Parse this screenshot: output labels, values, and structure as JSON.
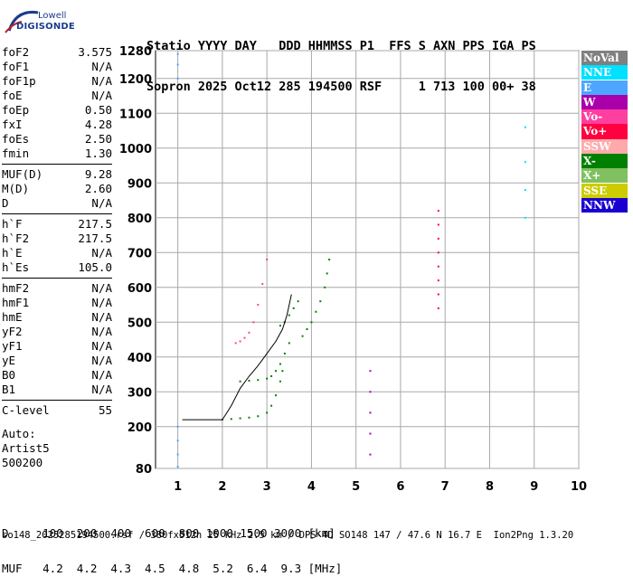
{
  "logo": {
    "line1": "Lowell",
    "line2": "DIGISONDE"
  },
  "header": {
    "labels": "Statio YYYY DAY   DDD HHMMSS P1  FFS S AXN PPS IGA PS",
    "values": "Sopron 2025 Oct12 285 194500 RSF     1 713 100 00+ 38"
  },
  "params_groups": [
    [
      [
        "foF2",
        "3.575"
      ],
      [
        "foF1",
        "N/A"
      ],
      [
        "foF1p",
        "N/A"
      ],
      [
        "foE",
        "N/A"
      ],
      [
        "foEp",
        "0.50"
      ],
      [
        "fxI",
        "4.28"
      ],
      [
        "foEs",
        "2.50"
      ],
      [
        "fmin",
        "1.30"
      ]
    ],
    [
      [
        "MUF(D)",
        "9.28"
      ],
      [
        "M(D)",
        "2.60"
      ],
      [
        "D",
        "N/A"
      ]
    ],
    [
      [
        "h`F",
        "217.5"
      ],
      [
        "h`F2",
        "217.5"
      ],
      [
        "h`E",
        "N/A"
      ],
      [
        "h`Es",
        "105.0"
      ]
    ],
    [
      [
        "hmF2",
        "N/A"
      ],
      [
        "hmF1",
        "N/A"
      ],
      [
        "hmE",
        "N/A"
      ],
      [
        "yF2",
        "N/A"
      ],
      [
        "yF1",
        "N/A"
      ],
      [
        "yE",
        "N/A"
      ],
      [
        "B0",
        "N/A"
      ],
      [
        "B1",
        "N/A"
      ]
    ],
    [
      [
        "C-level",
        "55"
      ]
    ]
  ],
  "auto": {
    "l1": "Auto:",
    "l2": "Artist5",
    "l3": "500200"
  },
  "legend": [
    {
      "label": "NoVal",
      "color": "#808080"
    },
    {
      "label": "NNE",
      "color": "#00e0ff"
    },
    {
      "label": "E",
      "color": "#4da6ff"
    },
    {
      "label": "W",
      "color": "#aa00aa"
    },
    {
      "label": "Vo-",
      "color": "#ff3fa0"
    },
    {
      "label": "Vo+",
      "color": "#ff0040"
    },
    {
      "label": "SSW",
      "color": "#ffaaaa"
    },
    {
      "label": "X-",
      "color": "#008000"
    },
    {
      "label": "X+",
      "color": "#80c060"
    },
    {
      "label": "SSE",
      "color": "#cccc00"
    },
    {
      "label": "NNW",
      "color": "#1a00d0"
    }
  ],
  "muf_table": {
    "d_line": "D     100  200  400  600  800 1000 1500 3000 [km]",
    "muf_line": "MUF   4.2  4.2  4.3  4.5  4.8  5.2  6.4  9.3 [MHz]"
  },
  "footer": "so148_2025285194500.rsf / 380fx512h 25 kHz 2.5 km / DPS-4D SO148 147 / 47.6 N 16.7 E  Ion2Png 1.3.20",
  "chart_data": {
    "type": "scatter",
    "xlim": [
      0.5,
      10
    ],
    "ylim": [
      80,
      1280
    ],
    "x_ticks": [
      1,
      2,
      3,
      4,
      5,
      6,
      7,
      8,
      9,
      10
    ],
    "y_ticks": [
      80,
      200,
      300,
      400,
      500,
      600,
      700,
      800,
      900,
      1000,
      1100,
      1200,
      1280
    ],
    "grid": true,
    "trace": {
      "x": [
        1.1,
        1.5,
        1.65,
        1.8,
        2.0,
        2.2,
        2.4,
        2.6,
        2.8,
        3.0,
        3.2,
        3.35,
        3.45,
        3.55
      ],
      "y": [
        220,
        220,
        220,
        220,
        220,
        260,
        310,
        345,
        375,
        410,
        445,
        480,
        520,
        580
      ]
    },
    "series": [
      {
        "color": "#008000",
        "x": [
          2.0,
          2.2,
          2.4,
          2.6,
          2.8,
          3.0,
          3.1,
          3.2,
          3.3,
          3.35
        ],
        "y": [
          220,
          222,
          224,
          226,
          230,
          240,
          260,
          290,
          330,
          360
        ]
      },
      {
        "color": "#008000",
        "x": [
          2.4,
          2.6,
          2.8,
          3.0,
          3.1,
          3.2,
          3.3,
          3.4,
          3.5
        ],
        "y": [
          330,
          332,
          334,
          338,
          345,
          360,
          380,
          410,
          440
        ]
      },
      {
        "color": "#008000",
        "x": [
          3.8,
          3.9,
          4.0,
          4.1,
          4.2,
          4.3,
          4.35,
          4.4
        ],
        "y": [
          460,
          480,
          500,
          530,
          560,
          600,
          640,
          680
        ]
      },
      {
        "color": "#008000",
        "x": [
          3.3,
          3.4,
          3.5,
          3.6,
          3.7
        ],
        "y": [
          490,
          500,
          520,
          540,
          560
        ]
      },
      {
        "color": "#ff3fa0",
        "x": [
          2.3,
          2.4,
          2.5,
          2.6,
          2.7,
          2.8,
          2.9,
          3.0
        ],
        "y": [
          440,
          445,
          455,
          470,
          500,
          550,
          610,
          680
        ]
      },
      {
        "color": "#ff0040",
        "x": [
          6.85,
          6.85,
          6.85,
          6.85,
          6.85,
          6.85,
          6.85,
          6.85
        ],
        "y": [
          540,
          580,
          620,
          660,
          700,
          740,
          780,
          820
        ]
      },
      {
        "color": "#aa00aa",
        "x": [
          5.32,
          5.32,
          5.32,
          5.32,
          5.32
        ],
        "y": [
          120,
          180,
          240,
          300,
          360
        ]
      },
      {
        "color": "#4da6ff",
        "x": [
          1.0,
          1.0,
          1.0,
          1.0,
          1.0,
          1.0,
          1.0
        ],
        "y": [
          85,
          120,
          160,
          200,
          1200,
          1240,
          1270
        ]
      },
      {
        "color": "#00e0ff",
        "x": [
          8.8,
          8.8,
          8.8,
          8.8
        ],
        "y": [
          800,
          880,
          960,
          1060
        ]
      }
    ]
  }
}
